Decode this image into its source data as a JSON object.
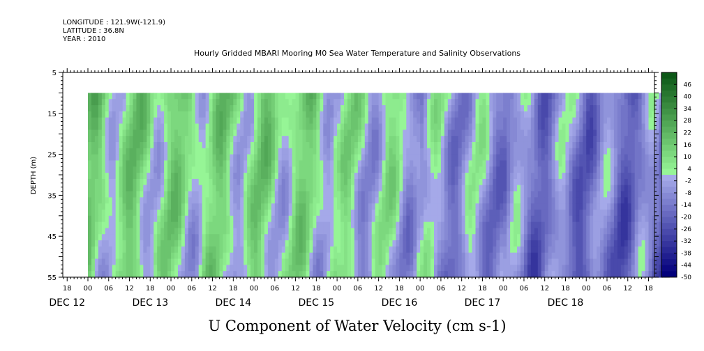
{
  "header": {
    "longitude": "LONGITUDE : 121.9W(-121.9)",
    "latitude": "LATITUDE : 36.8N",
    "year": "YEAR : 2010"
  },
  "chart_data": {
    "type": "heatmap",
    "title": "Hourly Gridded MBARI Mooring M0 Sea Water Temperature and Salinity Observations",
    "variable_label": "U Component of Water Velocity (cm s-1)",
    "ylabel": "DEPTH (m)",
    "y_ticks": [
      "5",
      "15",
      "25",
      "35",
      "45",
      "55"
    ],
    "ylim": [
      5,
      55
    ],
    "y_inverted": true,
    "data_depth_range": [
      10,
      55
    ],
    "x_range_hours": [
      0,
      168
    ],
    "hour_tick_labels": [
      "06",
      "12",
      "18",
      "00"
    ],
    "day_labels": [
      "DEC 12",
      "DEC 13",
      "DEC 14",
      "DEC 15",
      "DEC 16",
      "DEC 17",
      "DEC 18"
    ],
    "colorbar_levels": [
      "46",
      "40",
      "34",
      "28",
      "22",
      "16",
      "10",
      "4",
      "-2",
      "-8",
      "-14",
      "-20",
      "-26",
      "-32",
      "-38",
      "-44",
      "-50"
    ],
    "colorbar_min": -50,
    "colorbar_max": 52,
    "colorbar_step": 3,
    "day_mean_u": [
      {
        "day": "DEC 12",
        "value": 10
      },
      {
        "day": "DEC 13",
        "value": 8
      },
      {
        "day": "DEC 14",
        "value": 9
      },
      {
        "day": "DEC 15",
        "value": 3
      },
      {
        "day": "DEC 16",
        "value": -4
      },
      {
        "day": "DEC 17",
        "value": -10
      },
      {
        "day": "DEC 18",
        "value": -13
      }
    ],
    "grid": false,
    "legend": "right colorbar"
  }
}
